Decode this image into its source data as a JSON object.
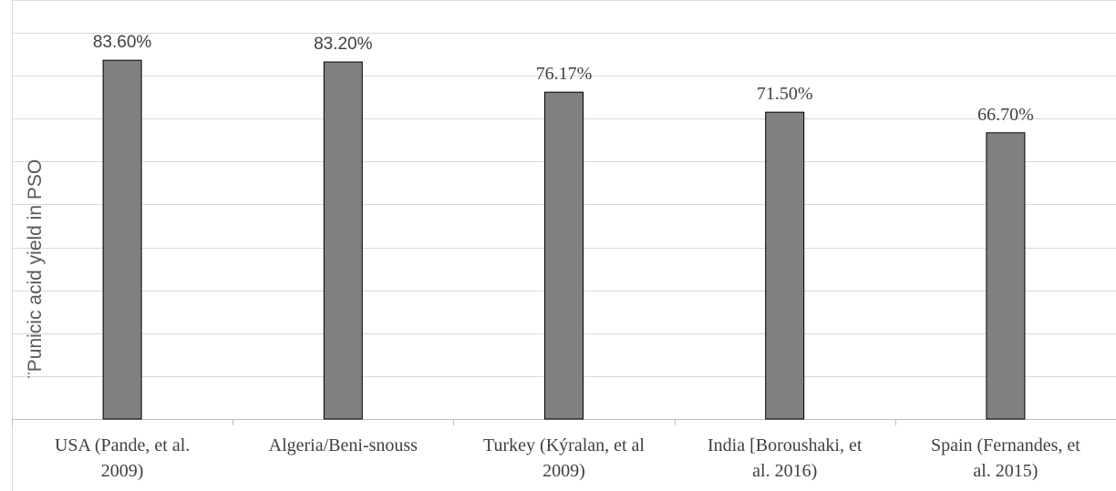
{
  "chart_data": {
    "type": "bar",
    "title": "",
    "xlabel": "",
    "ylabel": "¨Punicic acid yield in PSO",
    "categories": [
      [
        "USA (Pande, et al.",
        "2009)"
      ],
      [
        "Algeria/Beni-snouss"
      ],
      [
        "Turkey (Kýralan, et al",
        "2009)"
      ],
      [
        "India [Boroushaki, et",
        "al. 2016)"
      ],
      [
        "Spain (Fernandes, et",
        "al. 2015)"
      ]
    ],
    "values": [
      83.6,
      83.2,
      76.17,
      71.5,
      66.7
    ],
    "data_labels": [
      "83.60%",
      "83.20%",
      "76.17%",
      "71.50%",
      "66.70%"
    ],
    "ylim": [
      0,
      90
    ],
    "y_gridline_step": 10,
    "grid": true,
    "legend": "none",
    "colors": {
      "bar_fill": "#808080",
      "bar_stroke": "#000000",
      "gridline": "#d9d9d9",
      "axis": "#bfbfbf",
      "text": "#404040"
    }
  }
}
